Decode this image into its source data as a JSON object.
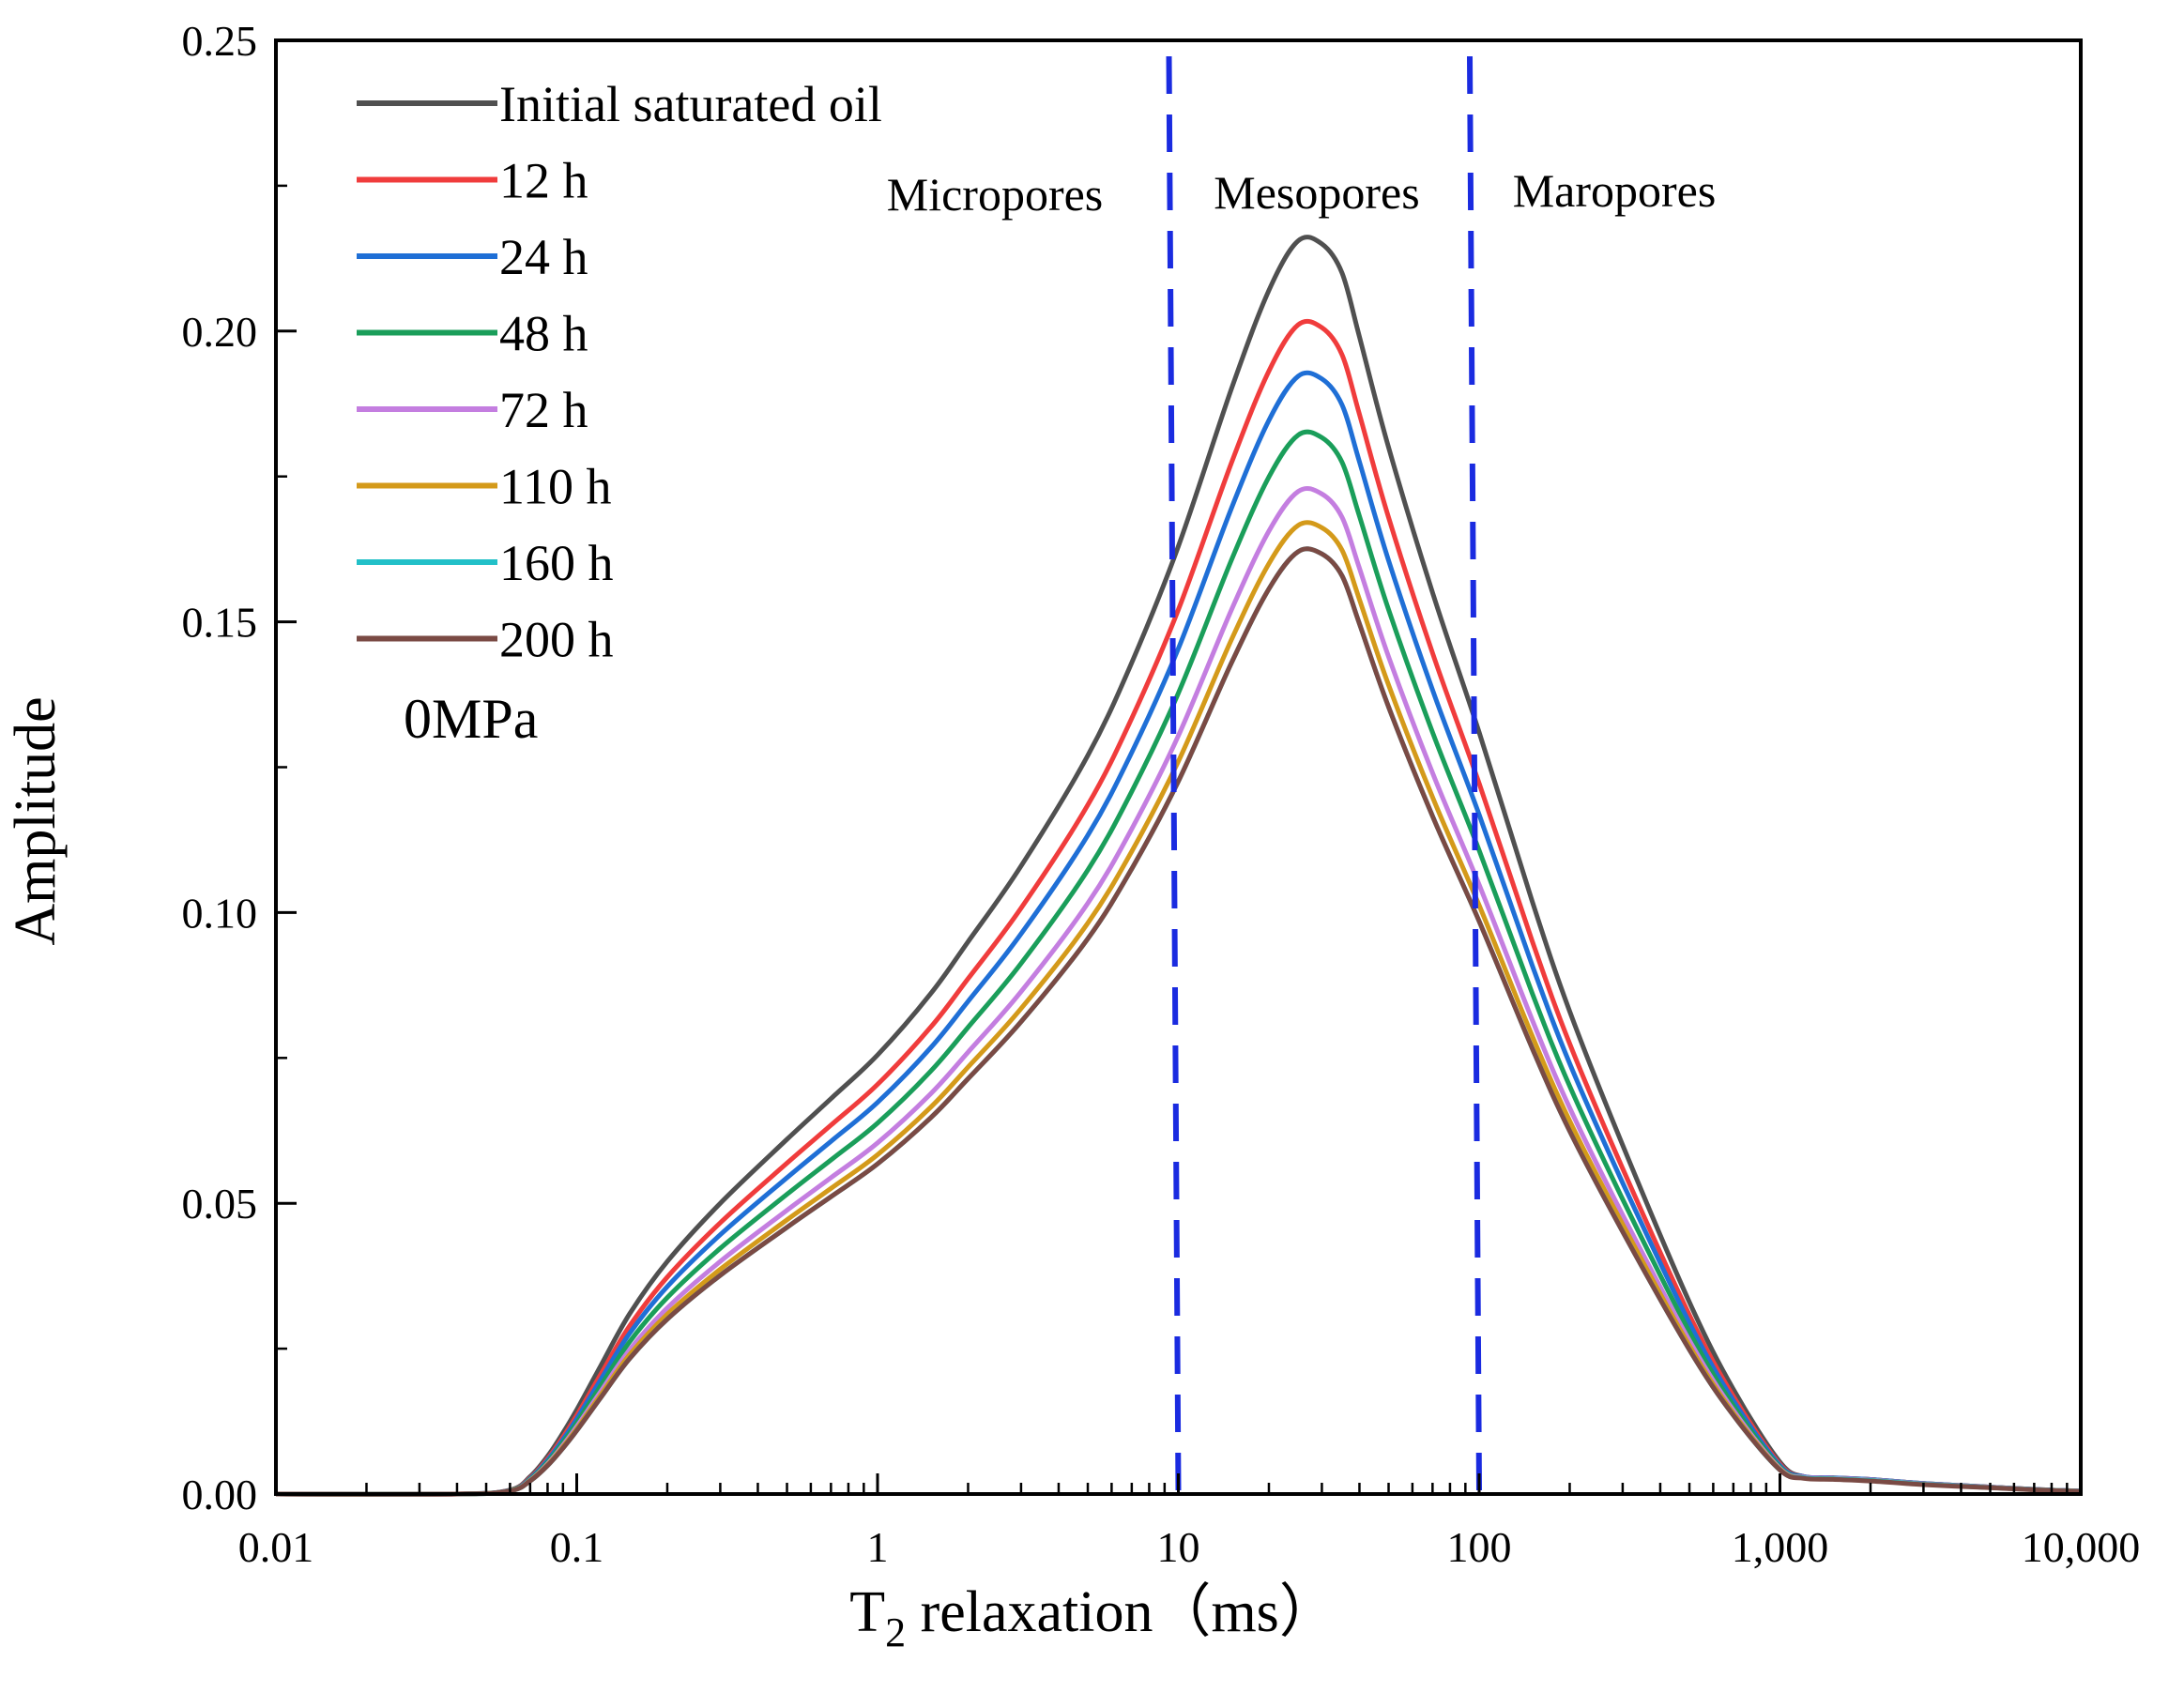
{
  "chart_data": {
    "type": "line",
    "title": "",
    "xlabel": "T",
    "xlabel_sub": "2",
    "xlabel_rest": " relaxation（ms）",
    "ylabel": "Amplitude",
    "xscale": "log",
    "xlim": [
      0.01,
      10000
    ],
    "ylim": [
      0,
      0.25
    ],
    "xticks": [
      {
        "value": 0.01,
        "label": "0.01"
      },
      {
        "value": 0.1,
        "label": "0.1"
      },
      {
        "value": 1,
        "label": "1"
      },
      {
        "value": 10,
        "label": "10"
      },
      {
        "value": 100,
        "label": "100"
      },
      {
        "value": 1000,
        "label": "1,000"
      },
      {
        "value": 10000,
        "label": "10,000"
      }
    ],
    "yticks": [
      {
        "value": 0,
        "label": "0.00"
      },
      {
        "value": 0.05,
        "label": "0.05"
      },
      {
        "value": 0.1,
        "label": "0.10"
      },
      {
        "value": 0.15,
        "label": "0.15"
      },
      {
        "value": 0.2,
        "label": "0.20"
      },
      {
        "value": 0.25,
        "label": "0.25"
      }
    ],
    "grid": false,
    "legend_position": "top-left",
    "annotation": "0MPa",
    "regions": [
      {
        "label": "Micropores"
      },
      {
        "label": "Mesopores"
      },
      {
        "label": "Maropores"
      }
    ],
    "dividers": [
      {
        "x": 10,
        "color": "#1a2be0"
      },
      {
        "x": 100,
        "color": "#1a2be0"
      }
    ],
    "series": [
      {
        "name": "Initial saturated oil",
        "color": "#505050",
        "scale": 1.0,
        "tail": 0.003
      },
      {
        "name": "12 h",
        "color": "#f03c3c",
        "scale": 0.933,
        "tail": 0.003
      },
      {
        "name": "24 h",
        "color": "#1f6fd6",
        "scale": 0.892,
        "tail": 0.003
      },
      {
        "name": "48 h",
        "color": "#1a9e5a",
        "scale": 0.845,
        "tail": 0.0029
      },
      {
        "name": "72 h",
        "color": "#c47ee0",
        "scale": 0.8,
        "tail": 0.0029
      },
      {
        "name": "110 h",
        "color": "#d49a1a",
        "scale": 0.773,
        "tail": 0.0028
      },
      {
        "name": "160 h",
        "color": "#22c0c8",
        "scale": 0.752,
        "tail": 0.0028
      },
      {
        "name": "200 h",
        "color": "#7a4a44",
        "scale": 0.752,
        "tail": 0.0027
      }
    ],
    "base_profile": {
      "x": [
        0.01,
        0.04,
        0.06,
        0.07,
        0.08,
        0.09,
        0.1,
        0.12,
        0.15,
        0.2,
        0.3,
        0.5,
        0.7,
        1,
        1.5,
        2,
        3,
        5,
        7,
        10,
        15,
        20,
        25,
        30,
        35,
        40,
        50,
        70,
        100,
        150,
        200,
        300,
        500,
        700,
        1000,
        1200,
        1500,
        2000,
        3000,
        5000,
        7000,
        10000
      ],
      "y": [
        0,
        0,
        0.0007,
        0.003,
        0.0065,
        0.0105,
        0.0145,
        0.022,
        0.031,
        0.04,
        0.05,
        0.061,
        0.068,
        0.0755,
        0.086,
        0.095,
        0.108,
        0.127,
        0.143,
        0.163,
        0.19,
        0.207,
        0.2155,
        0.215,
        0.21,
        0.199,
        0.18,
        0.155,
        0.131,
        0.102,
        0.083,
        0.06,
        0.033,
        0.018,
        0.0055,
        0.003,
        0.0028,
        0.0025,
        0.0018,
        0.0012,
        0.0008,
        0.0005
      ]
    }
  }
}
